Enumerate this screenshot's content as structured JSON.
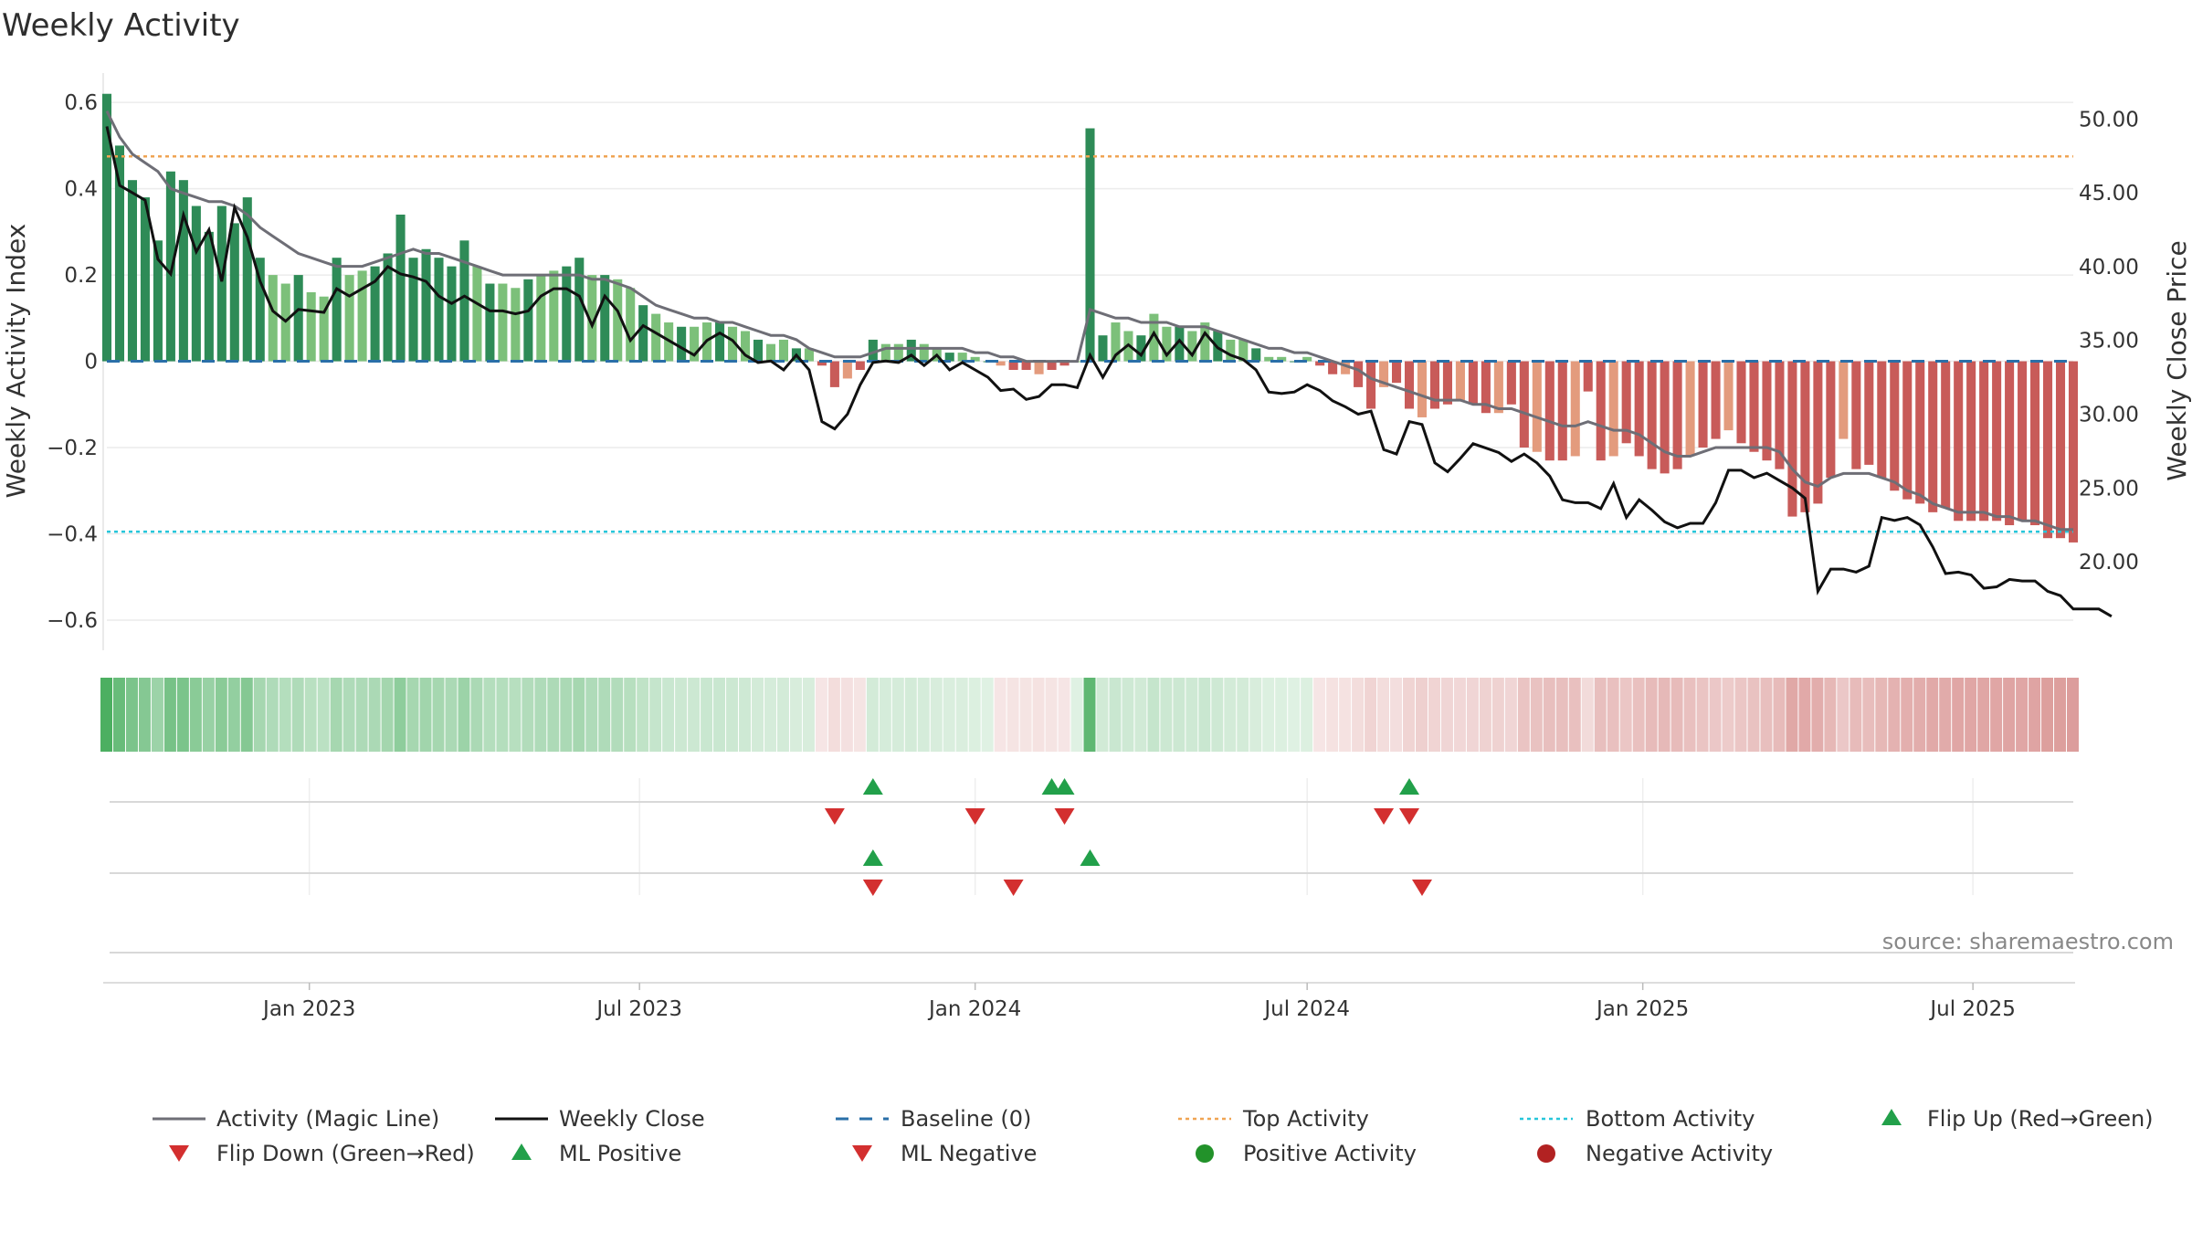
{
  "chart_data": {
    "type": "bar",
    "title": "Weekly Activity",
    "ylabel": "Weekly Activity Index",
    "y2label": "Weekly Close Price",
    "ylim": [
      -0.67,
      0.63
    ],
    "y2lim": [
      14.0,
      52.0
    ],
    "yticks": [
      0.6,
      0.4,
      0.2,
      0,
      -0.2,
      -0.4,
      -0.6
    ],
    "ytick_labels": [
      "0.6",
      "0.4",
      "0.2",
      "0",
      "−0.2",
      "−0.4",
      "−0.6"
    ],
    "y2ticks": [
      50,
      45,
      40,
      35,
      30,
      25,
      20
    ],
    "y2tick_labels": [
      "50.00",
      "45.00",
      "40.00",
      "35.00",
      "30.00",
      "25.00",
      "20.00"
    ],
    "x_start": "2022-09-12",
    "week_step_days": 7,
    "xticks": [
      {
        "date": "2023-01-01",
        "label": "Jan 2023"
      },
      {
        "date": "2023-07-01",
        "label": "Jul 2023"
      },
      {
        "date": "2024-01-01",
        "label": "Jan 2024"
      },
      {
        "date": "2024-07-01",
        "label": "Jul 2024"
      },
      {
        "date": "2025-01-01",
        "label": "Jan 2025"
      },
      {
        "date": "2025-07-01",
        "label": "Jul 2025"
      }
    ],
    "activity": [
      0.62,
      0.5,
      0.42,
      0.38,
      0.28,
      0.44,
      0.42,
      0.36,
      0.3,
      0.36,
      0.32,
      0.38,
      0.24,
      0.2,
      0.18,
      0.2,
      0.16,
      0.15,
      0.24,
      0.2,
      0.21,
      0.22,
      0.25,
      0.34,
      0.24,
      0.26,
      0.24,
      0.22,
      0.28,
      0.22,
      0.18,
      0.18,
      0.17,
      0.19,
      0.2,
      0.21,
      0.22,
      0.24,
      0.2,
      0.2,
      0.19,
      0.17,
      0.13,
      0.11,
      0.09,
      0.08,
      0.08,
      0.09,
      0.09,
      0.08,
      0.07,
      0.05,
      0.04,
      0.05,
      0.03,
      0.03,
      -0.01,
      -0.06,
      -0.04,
      -0.02,
      0.05,
      0.04,
      0.04,
      0.05,
      0.04,
      0.03,
      0.02,
      0.02,
      0.01,
      0.0,
      -0.01,
      -0.02,
      -0.02,
      -0.03,
      -0.02,
      -0.01,
      0.0,
      0.54,
      0.06,
      0.09,
      0.07,
      0.06,
      0.11,
      0.08,
      0.08,
      0.07,
      0.09,
      0.07,
      0.05,
      0.05,
      0.03,
      0.01,
      0.01,
      0.0,
      0.01,
      -0.01,
      -0.03,
      -0.03,
      -0.06,
      -0.11,
      -0.06,
      -0.05,
      -0.11,
      -0.13,
      -0.11,
      -0.1,
      -0.09,
      -0.1,
      -0.12,
      -0.12,
      -0.1,
      -0.2,
      -0.21,
      -0.23,
      -0.23,
      -0.22,
      -0.07,
      -0.23,
      -0.22,
      -0.19,
      -0.22,
      -0.25,
      -0.26,
      -0.25,
      -0.22,
      -0.2,
      -0.18,
      -0.16,
      -0.19,
      -0.21,
      -0.23,
      -0.25,
      -0.36,
      -0.35,
      -0.33,
      -0.27,
      -0.18,
      -0.25,
      -0.24,
      -0.27,
      -0.3,
      -0.32,
      -0.33,
      -0.35,
      -0.34,
      -0.37,
      -0.37,
      -0.37,
      -0.37,
      -0.38,
      -0.37,
      -0.38,
      -0.41,
      -0.41,
      -0.42
    ],
    "magic_line": [
      0.58,
      0.52,
      0.48,
      0.46,
      0.44,
      0.4,
      0.39,
      0.38,
      0.37,
      0.37,
      0.36,
      0.34,
      0.31,
      0.29,
      0.27,
      0.25,
      0.24,
      0.23,
      0.22,
      0.22,
      0.22,
      0.23,
      0.24,
      0.25,
      0.26,
      0.25,
      0.25,
      0.24,
      0.23,
      0.22,
      0.21,
      0.2,
      0.2,
      0.2,
      0.2,
      0.2,
      0.2,
      0.2,
      0.19,
      0.19,
      0.18,
      0.17,
      0.15,
      0.13,
      0.12,
      0.11,
      0.1,
      0.1,
      0.09,
      0.09,
      0.08,
      0.07,
      0.06,
      0.06,
      0.05,
      0.03,
      0.02,
      0.01,
      0.01,
      0.01,
      0.02,
      0.03,
      0.03,
      0.03,
      0.03,
      0.03,
      0.03,
      0.03,
      0.02,
      0.02,
      0.01,
      0.01,
      0.0,
      0.0,
      0.0,
      0.0,
      0.0,
      0.12,
      0.11,
      0.1,
      0.1,
      0.09,
      0.09,
      0.09,
      0.08,
      0.08,
      0.08,
      0.07,
      0.06,
      0.05,
      0.04,
      0.03,
      0.03,
      0.02,
      0.02,
      0.01,
      0.0,
      -0.01,
      -0.02,
      -0.04,
      -0.05,
      -0.06,
      -0.07,
      -0.08,
      -0.09,
      -0.09,
      -0.09,
      -0.1,
      -0.1,
      -0.11,
      -0.11,
      -0.12,
      -0.13,
      -0.14,
      -0.15,
      -0.15,
      -0.14,
      -0.15,
      -0.16,
      -0.16,
      -0.17,
      -0.19,
      -0.21,
      -0.22,
      -0.22,
      -0.21,
      -0.2,
      -0.2,
      -0.2,
      -0.2,
      -0.2,
      -0.21,
      -0.25,
      -0.28,
      -0.29,
      -0.27,
      -0.26,
      -0.26,
      -0.26,
      -0.27,
      -0.28,
      -0.3,
      -0.31,
      -0.33,
      -0.34,
      -0.35,
      -0.35,
      -0.35,
      -0.36,
      -0.36,
      -0.37,
      -0.37,
      -0.38,
      -0.39,
      -0.39
    ],
    "close": [
      49.5,
      45.5,
      45.0,
      44.5,
      40.5,
      39.5,
      43.5,
      41.0,
      42.5,
      39.0,
      44.0,
      42.0,
      39.0,
      37.0,
      36.3,
      37.1,
      37.0,
      36.9,
      38.5,
      38.0,
      38.5,
      39.0,
      40.0,
      39.5,
      39.3,
      39.0,
      38.0,
      37.5,
      38.0,
      37.5,
      37.0,
      37.0,
      36.8,
      37.0,
      38.0,
      38.5,
      38.5,
      38.0,
      36.0,
      38.0,
      37.0,
      35.0,
      36.0,
      35.5,
      35.0,
      34.5,
      34.0,
      35.0,
      35.5,
      35.0,
      34.0,
      33.5,
      33.6,
      33.0,
      34.0,
      33.0,
      29.5,
      29.0,
      30.0,
      32.0,
      33.5,
      33.6,
      33.5,
      34.0,
      33.3,
      34.0,
      33.0,
      33.5,
      33.0,
      32.5,
      31.6,
      31.7,
      31.0,
      31.2,
      32.0,
      32.0,
      31.8,
      34.0,
      32.5,
      34.0,
      34.7,
      34.0,
      35.5,
      34.0,
      35.0,
      34.0,
      35.5,
      34.5,
      34.0,
      33.7,
      33.0,
      31.5,
      31.4,
      31.5,
      32.0,
      31.6,
      30.9,
      30.5,
      30.0,
      30.2,
      27.6,
      27.3,
      29.5,
      29.3,
      26.7,
      26.1,
      27.0,
      28.0,
      27.7,
      27.4,
      26.8,
      27.3,
      26.7,
      25.8,
      24.2,
      24.0,
      24.0,
      23.6,
      25.3,
      23.0,
      24.2,
      23.5,
      22.7,
      22.3,
      22.6,
      22.6,
      24.0,
      26.2,
      26.2,
      25.7,
      26.0,
      25.5,
      25.0,
      24.3,
      18.0,
      19.5,
      19.5,
      19.3,
      19.7,
      23.0,
      22.8,
      23.0,
      22.5,
      21.0,
      19.2,
      19.3,
      19.1,
      18.2,
      18.3,
      18.8,
      18.7,
      18.7,
      18.0,
      17.7,
      16.8,
      16.8,
      16.8,
      16.3
    ],
    "top_activity": 0.475,
    "bottom_activity": -0.395,
    "baseline": 0,
    "heat_colors": {
      "positive": "#4caf61",
      "negative": "#d07a78"
    },
    "flip_up_weeks": [
      60,
      74,
      75,
      102
    ],
    "flip_down_weeks": [
      57,
      68,
      75,
      100,
      102
    ],
    "ml_positive_weeks": [
      60,
      77
    ],
    "ml_negative_weeks": [
      60,
      71,
      103
    ],
    "source": "source: sharemaestro.com",
    "legend": {
      "row1": [
        "Activity (Magic Line)",
        "Weekly Close",
        "Baseline (0)",
        "Top Activity",
        "Bottom Activity",
        "Flip Up (Red→Green)"
      ],
      "row2": [
        "Flip Down (Green→Red)",
        "ML Positive",
        "ML Negative",
        "Positive Activity",
        "Negative Activity"
      ]
    },
    "colors": {
      "green_dark": "#2e8b57",
      "green_light": "#7cc07a",
      "red_dark": "#c85b59",
      "red_light": "#e39b7d",
      "magic_line": "#6e6e76",
      "close": "#111111",
      "baseline": "#2a6fa8",
      "top": "#f0a453",
      "bottom": "#26c6da",
      "marker_up": "#22a04a",
      "marker_down": "#d32f2f",
      "pos_dot": "#22922a",
      "neg_dot": "#b22222"
    }
  }
}
